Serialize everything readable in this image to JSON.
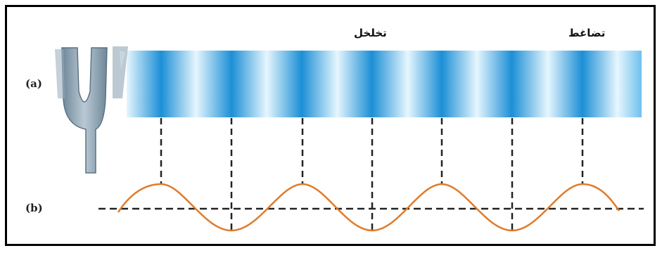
{
  "labels": {
    "rarefaction": "تخلخل",
    "compression": "تضاغط",
    "part_a": "(a)",
    "part_b": "(b)"
  },
  "colors": {
    "band_light": "#e6f6fe",
    "band_dark": "#1c8fd6",
    "wave": "#e07b2a",
    "fork": "#8ea4b4",
    "dash": "#222222"
  },
  "compression_count": 7
}
